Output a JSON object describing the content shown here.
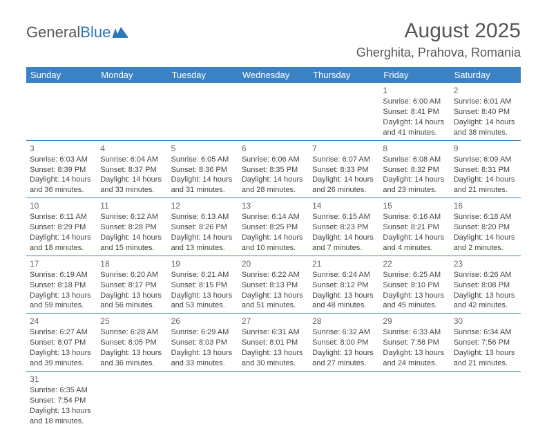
{
  "logo": {
    "text1": "General",
    "text2": "Blue"
  },
  "title": "August 2025",
  "location": "Gherghita, Prahova, Romania",
  "colors": {
    "header_bg": "#3b82c4",
    "header_text": "#ffffff",
    "row_border": "#3b82c4",
    "title_color": "#555555",
    "text_color": "#444444",
    "logo_blue": "#2f76bb",
    "background": "#ffffff"
  },
  "typography": {
    "title_fontsize": 30,
    "location_fontsize": 18,
    "weekday_fontsize": 13,
    "cell_fontsize": 11,
    "logo_fontsize": 22
  },
  "weekdays": [
    "Sunday",
    "Monday",
    "Tuesday",
    "Wednesday",
    "Thursday",
    "Friday",
    "Saturday"
  ],
  "weeks": [
    [
      {},
      {},
      {},
      {},
      {},
      {
        "day": "1",
        "sunrise": "Sunrise: 6:00 AM",
        "sunset": "Sunset: 8:41 PM",
        "day1": "Daylight: 14 hours",
        "day2": "and 41 minutes."
      },
      {
        "day": "2",
        "sunrise": "Sunrise: 6:01 AM",
        "sunset": "Sunset: 8:40 PM",
        "day1": "Daylight: 14 hours",
        "day2": "and 38 minutes."
      }
    ],
    [
      {
        "day": "3",
        "sunrise": "Sunrise: 6:03 AM",
        "sunset": "Sunset: 8:39 PM",
        "day1": "Daylight: 14 hours",
        "day2": "and 36 minutes."
      },
      {
        "day": "4",
        "sunrise": "Sunrise: 6:04 AM",
        "sunset": "Sunset: 8:37 PM",
        "day1": "Daylight: 14 hours",
        "day2": "and 33 minutes."
      },
      {
        "day": "5",
        "sunrise": "Sunrise: 6:05 AM",
        "sunset": "Sunset: 8:36 PM",
        "day1": "Daylight: 14 hours",
        "day2": "and 31 minutes."
      },
      {
        "day": "6",
        "sunrise": "Sunrise: 6:06 AM",
        "sunset": "Sunset: 8:35 PM",
        "day1": "Daylight: 14 hours",
        "day2": "and 28 minutes."
      },
      {
        "day": "7",
        "sunrise": "Sunrise: 6:07 AM",
        "sunset": "Sunset: 8:33 PM",
        "day1": "Daylight: 14 hours",
        "day2": "and 26 minutes."
      },
      {
        "day": "8",
        "sunrise": "Sunrise: 6:08 AM",
        "sunset": "Sunset: 8:32 PM",
        "day1": "Daylight: 14 hours",
        "day2": "and 23 minutes."
      },
      {
        "day": "9",
        "sunrise": "Sunrise: 6:09 AM",
        "sunset": "Sunset: 8:31 PM",
        "day1": "Daylight: 14 hours",
        "day2": "and 21 minutes."
      }
    ],
    [
      {
        "day": "10",
        "sunrise": "Sunrise: 6:11 AM",
        "sunset": "Sunset: 8:29 PM",
        "day1": "Daylight: 14 hours",
        "day2": "and 18 minutes."
      },
      {
        "day": "11",
        "sunrise": "Sunrise: 6:12 AM",
        "sunset": "Sunset: 8:28 PM",
        "day1": "Daylight: 14 hours",
        "day2": "and 15 minutes."
      },
      {
        "day": "12",
        "sunrise": "Sunrise: 6:13 AM",
        "sunset": "Sunset: 8:26 PM",
        "day1": "Daylight: 14 hours",
        "day2": "and 13 minutes."
      },
      {
        "day": "13",
        "sunrise": "Sunrise: 6:14 AM",
        "sunset": "Sunset: 8:25 PM",
        "day1": "Daylight: 14 hours",
        "day2": "and 10 minutes."
      },
      {
        "day": "14",
        "sunrise": "Sunrise: 6:15 AM",
        "sunset": "Sunset: 8:23 PM",
        "day1": "Daylight: 14 hours",
        "day2": "and 7 minutes."
      },
      {
        "day": "15",
        "sunrise": "Sunrise: 6:16 AM",
        "sunset": "Sunset: 8:21 PM",
        "day1": "Daylight: 14 hours",
        "day2": "and 4 minutes."
      },
      {
        "day": "16",
        "sunrise": "Sunrise: 6:18 AM",
        "sunset": "Sunset: 8:20 PM",
        "day1": "Daylight: 14 hours",
        "day2": "and 2 minutes."
      }
    ],
    [
      {
        "day": "17",
        "sunrise": "Sunrise: 6:19 AM",
        "sunset": "Sunset: 8:18 PM",
        "day1": "Daylight: 13 hours",
        "day2": "and 59 minutes."
      },
      {
        "day": "18",
        "sunrise": "Sunrise: 6:20 AM",
        "sunset": "Sunset: 8:17 PM",
        "day1": "Daylight: 13 hours",
        "day2": "and 56 minutes."
      },
      {
        "day": "19",
        "sunrise": "Sunrise: 6:21 AM",
        "sunset": "Sunset: 8:15 PM",
        "day1": "Daylight: 13 hours",
        "day2": "and 53 minutes."
      },
      {
        "day": "20",
        "sunrise": "Sunrise: 6:22 AM",
        "sunset": "Sunset: 8:13 PM",
        "day1": "Daylight: 13 hours",
        "day2": "and 51 minutes."
      },
      {
        "day": "21",
        "sunrise": "Sunrise: 6:24 AM",
        "sunset": "Sunset: 8:12 PM",
        "day1": "Daylight: 13 hours",
        "day2": "and 48 minutes."
      },
      {
        "day": "22",
        "sunrise": "Sunrise: 6:25 AM",
        "sunset": "Sunset: 8:10 PM",
        "day1": "Daylight: 13 hours",
        "day2": "and 45 minutes."
      },
      {
        "day": "23",
        "sunrise": "Sunrise: 6:26 AM",
        "sunset": "Sunset: 8:08 PM",
        "day1": "Daylight: 13 hours",
        "day2": "and 42 minutes."
      }
    ],
    [
      {
        "day": "24",
        "sunrise": "Sunrise: 6:27 AM",
        "sunset": "Sunset: 8:07 PM",
        "day1": "Daylight: 13 hours",
        "day2": "and 39 minutes."
      },
      {
        "day": "25",
        "sunrise": "Sunrise: 6:28 AM",
        "sunset": "Sunset: 8:05 PM",
        "day1": "Daylight: 13 hours",
        "day2": "and 36 minutes."
      },
      {
        "day": "26",
        "sunrise": "Sunrise: 6:29 AM",
        "sunset": "Sunset: 8:03 PM",
        "day1": "Daylight: 13 hours",
        "day2": "and 33 minutes."
      },
      {
        "day": "27",
        "sunrise": "Sunrise: 6:31 AM",
        "sunset": "Sunset: 8:01 PM",
        "day1": "Daylight: 13 hours",
        "day2": "and 30 minutes."
      },
      {
        "day": "28",
        "sunrise": "Sunrise: 6:32 AM",
        "sunset": "Sunset: 8:00 PM",
        "day1": "Daylight: 13 hours",
        "day2": "and 27 minutes."
      },
      {
        "day": "29",
        "sunrise": "Sunrise: 6:33 AM",
        "sunset": "Sunset: 7:58 PM",
        "day1": "Daylight: 13 hours",
        "day2": "and 24 minutes."
      },
      {
        "day": "30",
        "sunrise": "Sunrise: 6:34 AM",
        "sunset": "Sunset: 7:56 PM",
        "day1": "Daylight: 13 hours",
        "day2": "and 21 minutes."
      }
    ],
    [
      {
        "day": "31",
        "sunrise": "Sunrise: 6:35 AM",
        "sunset": "Sunset: 7:54 PM",
        "day1": "Daylight: 13 hours",
        "day2": "and 18 minutes."
      },
      {},
      {},
      {},
      {},
      {},
      {}
    ]
  ]
}
